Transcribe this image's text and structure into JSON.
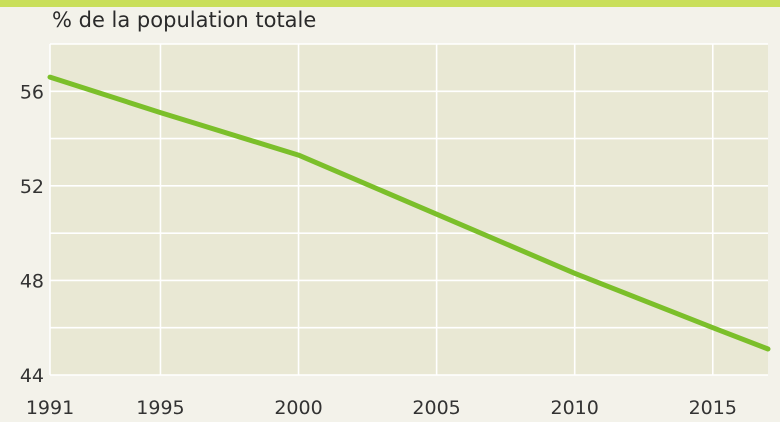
{
  "chart_data": {
    "type": "line",
    "title": "% de la population totale",
    "xlabel": "",
    "ylabel": "",
    "x_ticks": [
      1991,
      1995,
      2000,
      2005,
      2010,
      2015
    ],
    "y_ticks": [
      44,
      48,
      52,
      56
    ],
    "xlim": [
      1991,
      2017
    ],
    "ylim": [
      44,
      58
    ],
    "grid": true,
    "colors": {
      "line": "#7bbf2a",
      "plot_bg": "#e9e8d4",
      "grid": "#ffffff",
      "top_bar": "#c9df5a"
    },
    "series": [
      {
        "x": [
          1991,
          1995,
          2000,
          2005,
          2010,
          2015,
          2017
        ],
        "y": [
          56.6,
          55.1,
          53.3,
          50.8,
          48.3,
          46.0,
          45.1
        ]
      }
    ]
  }
}
